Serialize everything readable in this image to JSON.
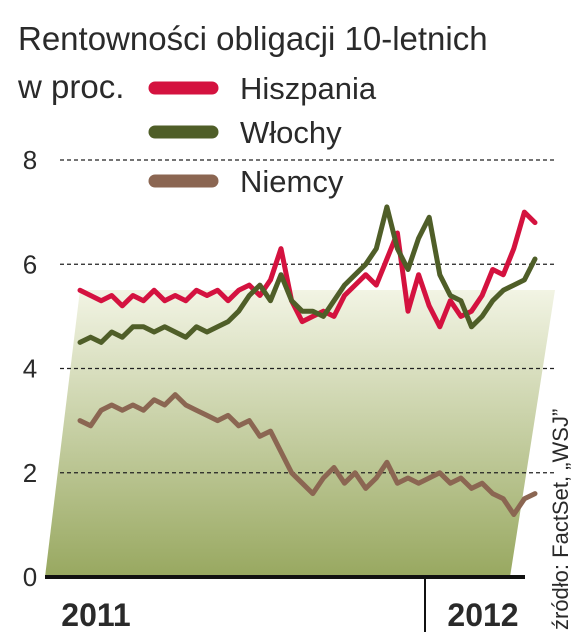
{
  "chart_data": {
    "type": "line",
    "title": "Rentowności obligacji 10-letnich",
    "subtitle": "w proc.",
    "x_axis_labels": [
      "2011",
      "2012"
    ],
    "source": "źródło: FactSet, „WSJ”",
    "ylim": [
      0,
      8
    ],
    "yticks": [
      0,
      2,
      4,
      6,
      8
    ],
    "grid": true,
    "series": [
      {
        "name": "Hiszpania",
        "color": "#d4123f",
        "values": [
          5.5,
          5.4,
          5.3,
          5.4,
          5.2,
          5.4,
          5.3,
          5.5,
          5.3,
          5.4,
          5.3,
          5.5,
          5.4,
          5.5,
          5.3,
          5.5,
          5.6,
          5.4,
          5.7,
          6.3,
          5.3,
          4.9,
          5.0,
          5.1,
          5.0,
          5.4,
          5.6,
          5.8,
          5.6,
          6.1,
          6.6,
          5.1,
          5.8,
          5.2,
          4.8,
          5.3,
          5.0,
          5.1,
          5.4,
          5.9,
          5.8,
          6.3,
          7.0,
          6.8
        ]
      },
      {
        "name": "Włochy",
        "color": "#4f5e28",
        "values": [
          4.5,
          4.6,
          4.5,
          4.7,
          4.6,
          4.8,
          4.8,
          4.7,
          4.8,
          4.7,
          4.6,
          4.8,
          4.7,
          4.8,
          4.9,
          5.1,
          5.4,
          5.6,
          5.3,
          5.8,
          5.3,
          5.1,
          5.1,
          5.0,
          5.3,
          5.6,
          5.8,
          6.0,
          6.3,
          7.1,
          6.3,
          5.9,
          6.5,
          6.9,
          5.8,
          5.4,
          5.3,
          4.8,
          5.0,
          5.3,
          5.5,
          5.6,
          5.7,
          6.1
        ]
      },
      {
        "name": "Niemcy",
        "color": "#8b6652",
        "values": [
          3.0,
          2.9,
          3.2,
          3.3,
          3.2,
          3.3,
          3.2,
          3.4,
          3.3,
          3.5,
          3.3,
          3.2,
          3.1,
          3.0,
          3.1,
          2.9,
          3.0,
          2.7,
          2.8,
          2.4,
          2.0,
          1.8,
          1.6,
          1.9,
          2.1,
          1.8,
          2.0,
          1.7,
          1.9,
          2.2,
          1.8,
          1.9,
          1.8,
          1.9,
          2.0,
          1.8,
          1.9,
          1.7,
          1.8,
          1.6,
          1.5,
          1.2,
          1.5,
          1.6
        ]
      }
    ]
  }
}
